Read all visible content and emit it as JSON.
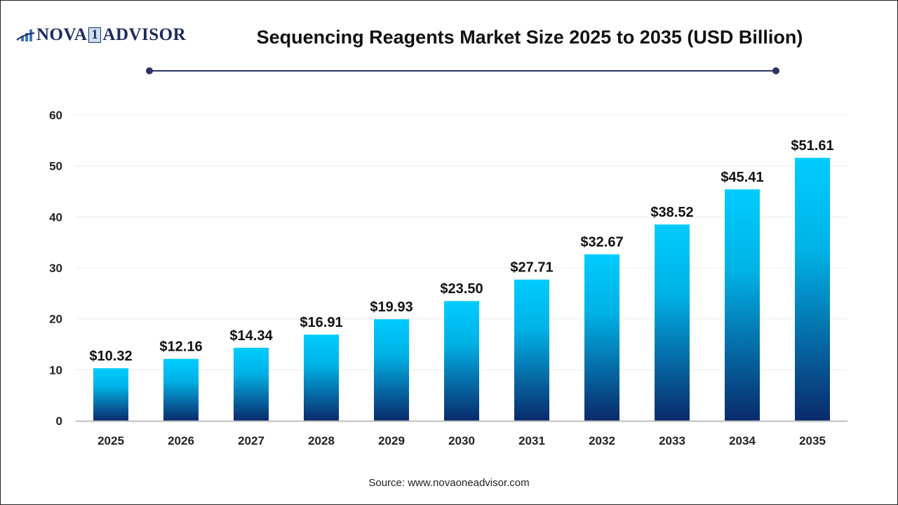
{
  "logo": {
    "text_left": "NOVA",
    "text_mid": "1",
    "text_right": "ADVISOR",
    "icon": "bar-chart-swoosh-icon"
  },
  "header": {
    "title": "Sequencing Reagents Market Size 2025 to 2035 (USD Billion)"
  },
  "source": "Source: www.novaoneadvisor.com",
  "colors": {
    "bar_top": "#00ccff",
    "bar_bottom": "#0a2a6b",
    "accent": "#2a3563"
  },
  "chart_data": {
    "type": "bar",
    "title": "Sequencing Reagents Market Size 2025 to 2035 (USD Billion)",
    "categories": [
      "2025",
      "2026",
      "2027",
      "2028",
      "2029",
      "2030",
      "2031",
      "2032",
      "2033",
      "2034",
      "2035"
    ],
    "values": [
      10.32,
      12.16,
      14.34,
      16.91,
      19.93,
      23.5,
      27.71,
      32.67,
      38.52,
      45.41,
      51.61
    ],
    "data_labels": [
      "$10.32",
      "$12.16",
      "$14.34",
      "$16.91",
      "$19.93",
      "$23.50",
      "$27.71",
      "$32.67",
      "$38.52",
      "$45.41",
      "$51.61"
    ],
    "yticks": [
      0,
      10,
      20,
      30,
      40,
      50,
      60
    ],
    "ylim": [
      0,
      60
    ],
    "xlabel": "",
    "ylabel": "",
    "grid": true,
    "legend": "none"
  }
}
